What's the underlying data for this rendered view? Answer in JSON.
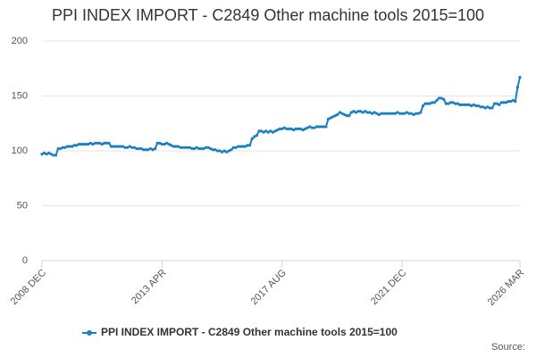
{
  "chart_data": {
    "type": "line",
    "title": "PPI INDEX IMPORT - C2849 Other machine tools 2015=100",
    "source": "Source:",
    "categories": [
      "2008 DEC",
      null,
      null,
      null,
      null,
      null,
      null,
      null,
      null,
      null,
      null,
      null,
      null,
      null,
      null,
      null,
      null,
      null,
      null,
      null,
      null,
      null,
      null,
      null,
      null,
      null,
      null,
      null,
      null,
      null,
      null,
      null,
      null,
      null,
      null,
      null,
      null,
      null,
      null,
      null,
      null,
      null,
      null,
      null,
      null,
      null,
      null,
      null,
      null,
      null,
      null,
      null,
      "2013 APR",
      null,
      null,
      null,
      null,
      null,
      null,
      null,
      null,
      null,
      null,
      null,
      null,
      null,
      null,
      null,
      null,
      null,
      null,
      null,
      null,
      null,
      null,
      null,
      null,
      null,
      null,
      null,
      null,
      null,
      null,
      null,
      null,
      null,
      null,
      null,
      null,
      null,
      null,
      null,
      null,
      null,
      null,
      null,
      null,
      null,
      null,
      null,
      null,
      null,
      null,
      null,
      "2017 AUG",
      null,
      null,
      null,
      null,
      null,
      null,
      null,
      null,
      null,
      null,
      null,
      null,
      null,
      null,
      null,
      null,
      null,
      null,
      null,
      null,
      null,
      null,
      null,
      null,
      null,
      null,
      null,
      null,
      null,
      null,
      null,
      null,
      null,
      null,
      null,
      null,
      null,
      null,
      null,
      null,
      null,
      null,
      null,
      null,
      null,
      null,
      null,
      null,
      null,
      null,
      null,
      "2021 DEC",
      null,
      null,
      null,
      null,
      null,
      null,
      null,
      null,
      null,
      null,
      null,
      null,
      null,
      null,
      null,
      null,
      null,
      null,
      null,
      null,
      null,
      null,
      null,
      null,
      null,
      null,
      null,
      null,
      null,
      null,
      null,
      null,
      null,
      null,
      null,
      null,
      null,
      null,
      null,
      null,
      null,
      null,
      null,
      null,
      null,
      null,
      null,
      null,
      null,
      null,
      "2026 MAR"
    ],
    "series": [
      {
        "name": "PPI INDEX IMPORT - C2849 Other machine tools 2015=100",
        "color": "#1a7fbf",
        "values": [
          97,
          98,
          97,
          98,
          97,
          96,
          96,
          102,
          102,
          103,
          103,
          104,
          104,
          104,
          105,
          105,
          106,
          106,
          106,
          106,
          106,
          107,
          106,
          107,
          107,
          107,
          106,
          107,
          107,
          107,
          104,
          104,
          104,
          104,
          104,
          104,
          103,
          103,
          104,
          103,
          103,
          102,
          102,
          102,
          101,
          101,
          101,
          102,
          101,
          102,
          107,
          107,
          106,
          106,
          107,
          106,
          105,
          104,
          104,
          104,
          103,
          103,
          103,
          103,
          103,
          102,
          102,
          103,
          102,
          102,
          102,
          103,
          103,
          102,
          101,
          101,
          100,
          100,
          99,
          100,
          99,
          100,
          101,
          103,
          103,
          104,
          104,
          104,
          104,
          105,
          105,
          111,
          113,
          114,
          118,
          118,
          117,
          118,
          117,
          118,
          117,
          118,
          119,
          120,
          120,
          121,
          120,
          120,
          120,
          119,
          120,
          120,
          120,
          119,
          120,
          121,
          122,
          121,
          121,
          122,
          122,
          122,
          122,
          122,
          129,
          130,
          131,
          132,
          133,
          135,
          134,
          133,
          132,
          132,
          135,
          136,
          135,
          136,
          136,
          135,
          136,
          135,
          135,
          134,
          135,
          134,
          133,
          134,
          134,
          134,
          134,
          134,
          134,
          134,
          135,
          134,
          134,
          134,
          135,
          134,
          134,
          133,
          134,
          134,
          135,
          141,
          143,
          143,
          143,
          144,
          144,
          146,
          148,
          148,
          147,
          143,
          143,
          144,
          144,
          143,
          143,
          142,
          142,
          142,
          142,
          142,
          141,
          142,
          141,
          141,
          140,
          140,
          139,
          140,
          139,
          139,
          143,
          143,
          142,
          144,
          144,
          144,
          145,
          145,
          146,
          145,
          158,
          167
        ]
      }
    ],
    "ylim": [
      0,
      200
    ],
    "yticks": [
      0,
      50,
      100,
      150,
      200
    ],
    "grid": true,
    "legend": "bottom"
  }
}
